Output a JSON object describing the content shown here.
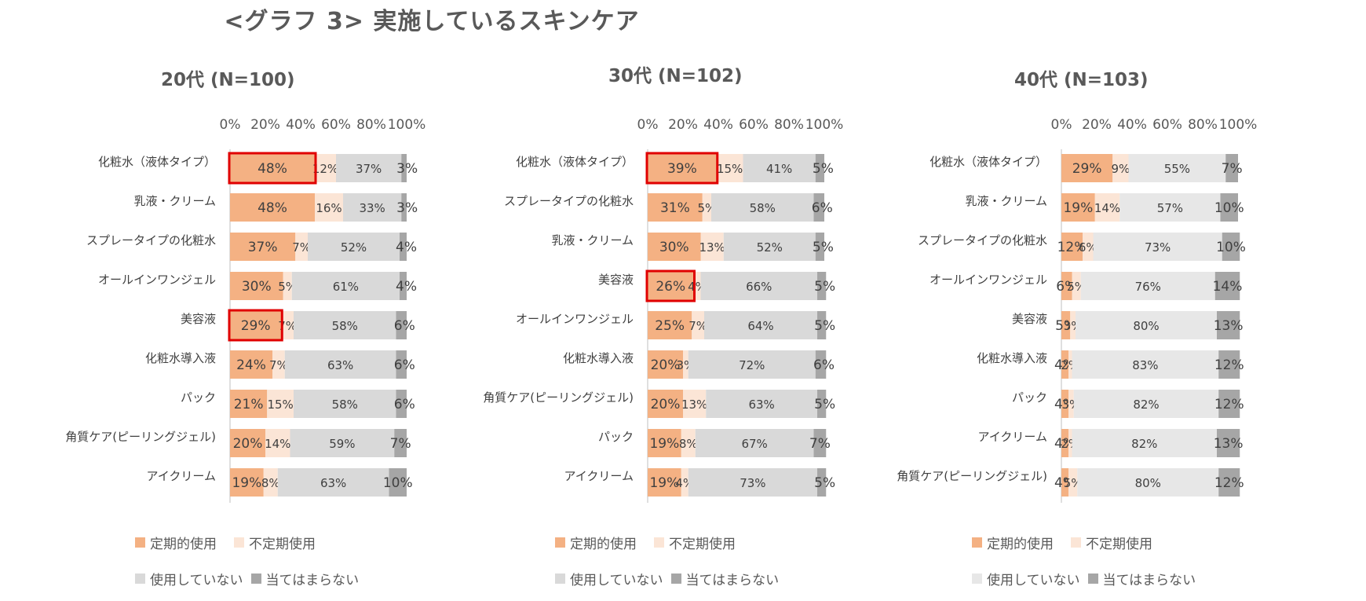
{
  "title": "<グラフ 3> 実施しているスキンケア",
  "colors": {
    "定期的使用": "#f4b183",
    "不定期使用": "#fbe5d6",
    "使用していない": "#d9d9d9",
    "当てはまらない": "#a6a6a6",
    "highlight": "#e00000"
  },
  "chart_data": [
    {
      "type": "bar",
      "orientation": "horizontal-stacked-100",
      "title": "20代 (N=100)",
      "xlim": [
        0,
        100
      ],
      "xticks": [
        "0%",
        "20%",
        "40%",
        "60%",
        "80%",
        "100%"
      ],
      "categories": [
        "化粧水（液体タイプ）",
        "乳液・クリーム",
        "スプレータイプの化粧水",
        "オールインワンジェル",
        "美容液",
        "化粧水導入液",
        "パック",
        "角質ケア(ピーリングジェル)",
        "アイクリーム"
      ],
      "series": [
        {
          "name": "定期的使用",
          "values": [
            48,
            48,
            37,
            30,
            29,
            24,
            21,
            20,
            19
          ]
        },
        {
          "name": "不定期使用",
          "values": [
            12,
            16,
            7,
            5,
            7,
            7,
            15,
            14,
            8
          ]
        },
        {
          "name": "使用していない",
          "values": [
            37,
            33,
            52,
            61,
            58,
            63,
            58,
            59,
            63
          ]
        },
        {
          "name": "当てはまらない",
          "values": [
            3,
            3,
            4,
            4,
            6,
            6,
            6,
            7,
            10
          ]
        }
      ],
      "highlighted": [
        "化粧水（液体タイプ）",
        "美容液"
      ],
      "legend": "bottom"
    },
    {
      "type": "bar",
      "orientation": "horizontal-stacked-100",
      "title": "30代 (N=102)",
      "xlim": [
        0,
        100
      ],
      "xticks": [
        "0%",
        "20%",
        "40%",
        "60%",
        "80%",
        "100%"
      ],
      "categories": [
        "化粧水（液体タイプ）",
        "スプレータイプの化粧水",
        "乳液・クリーム",
        "美容液",
        "オールインワンジェル",
        "化粧水導入液",
        "角質ケア(ピーリングジェル)",
        "パック",
        "アイクリーム"
      ],
      "series": [
        {
          "name": "定期的使用",
          "values": [
            39,
            31,
            30,
            26,
            25,
            20,
            20,
            19,
            19
          ]
        },
        {
          "name": "不定期使用",
          "values": [
            15,
            5,
            13,
            4,
            7,
            3,
            13,
            8,
            4
          ]
        },
        {
          "name": "使用していない",
          "values": [
            41,
            58,
            52,
            66,
            64,
            72,
            63,
            67,
            73
          ]
        },
        {
          "name": "当てはまらない",
          "values": [
            5,
            6,
            5,
            5,
            5,
            6,
            5,
            7,
            5
          ]
        }
      ],
      "highlighted": [
        "化粧水（液体タイプ）",
        "美容液"
      ],
      "legend": "bottom"
    },
    {
      "type": "bar",
      "orientation": "horizontal-stacked-100",
      "title": "40代 (N=103)",
      "xlim": [
        0,
        100
      ],
      "xticks": [
        "0%",
        "20%",
        "40%",
        "60%",
        "80%",
        "100%"
      ],
      "categories": [
        "化粧水（液体タイプ）",
        "乳液・クリーム",
        "スプレータイプの化粧水",
        "オールインワンジェル",
        "美容液",
        "化粧水導入液",
        "パック",
        "アイクリーム",
        "角質ケア(ピーリングジェル)"
      ],
      "series": [
        {
          "name": "定期的使用",
          "values": [
            29,
            19,
            12,
            6,
            5,
            4,
            4,
            4,
            4
          ]
        },
        {
          "name": "不定期使用",
          "values": [
            9,
            14,
            6,
            5,
            3,
            2,
            3,
            2,
            5
          ]
        },
        {
          "name": "使用していない",
          "values": [
            55,
            57,
            73,
            76,
            80,
            83,
            82,
            82,
            80
          ]
        },
        {
          "name": "当てはまらない",
          "values": [
            7,
            10,
            10,
            14,
            13,
            12,
            12,
            13,
            12
          ]
        }
      ],
      "highlighted": [],
      "legend": "bottom"
    }
  ]
}
